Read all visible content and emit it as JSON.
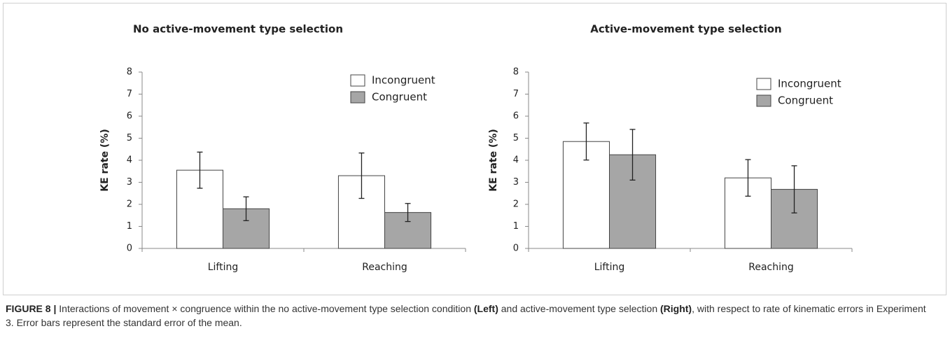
{
  "chart_data": [
    {
      "type": "bar",
      "title": "No active-movement type selection",
      "ylabel": "KE rate (%)",
      "categories": [
        "Lifting",
        "Reaching"
      ],
      "series": [
        {
          "name": "Incongruent",
          "color": "#ffffff",
          "values": [
            3.55,
            3.3
          ],
          "errors": [
            0.82,
            1.03
          ]
        },
        {
          "name": "Congruent",
          "color": "#a6a6a6",
          "values": [
            1.8,
            1.63
          ],
          "errors": [
            0.54,
            0.41
          ]
        }
      ],
      "ylim": [
        0,
        8
      ],
      "yticks": [
        0,
        1,
        2,
        3,
        4,
        5,
        6,
        7,
        8
      ]
    },
    {
      "type": "bar",
      "title": "Active-movement type selection",
      "ylabel": "KE rate (%)",
      "categories": [
        "Lifting",
        "Reaching"
      ],
      "series": [
        {
          "name": "Incongruent",
          "color": "#ffffff",
          "values": [
            4.85,
            3.2
          ],
          "errors": [
            0.84,
            0.83
          ]
        },
        {
          "name": "Congruent",
          "color": "#a6a6a6",
          "values": [
            4.25,
            2.68
          ],
          "errors": [
            1.15,
            1.07
          ]
        }
      ],
      "ylim": [
        0,
        8
      ],
      "yticks": [
        0,
        1,
        2,
        3,
        4,
        5,
        6,
        7,
        8
      ]
    }
  ],
  "caption": [
    {
      "text": "FIGURE 8 |",
      "bold": true
    },
    {
      "text": " Interactions of movement × congruence within the no active-movement type selection condition ",
      "bold": false
    },
    {
      "text": "(Left)",
      "bold": true
    },
    {
      "text": " and active-movement type selection ",
      "bold": false
    },
    {
      "text": "(Right)",
      "bold": true
    },
    {
      "text": ", with respect to rate of kinematic errors in Experiment 3. Error bars represent the standard error of the mean.",
      "bold": false
    }
  ]
}
